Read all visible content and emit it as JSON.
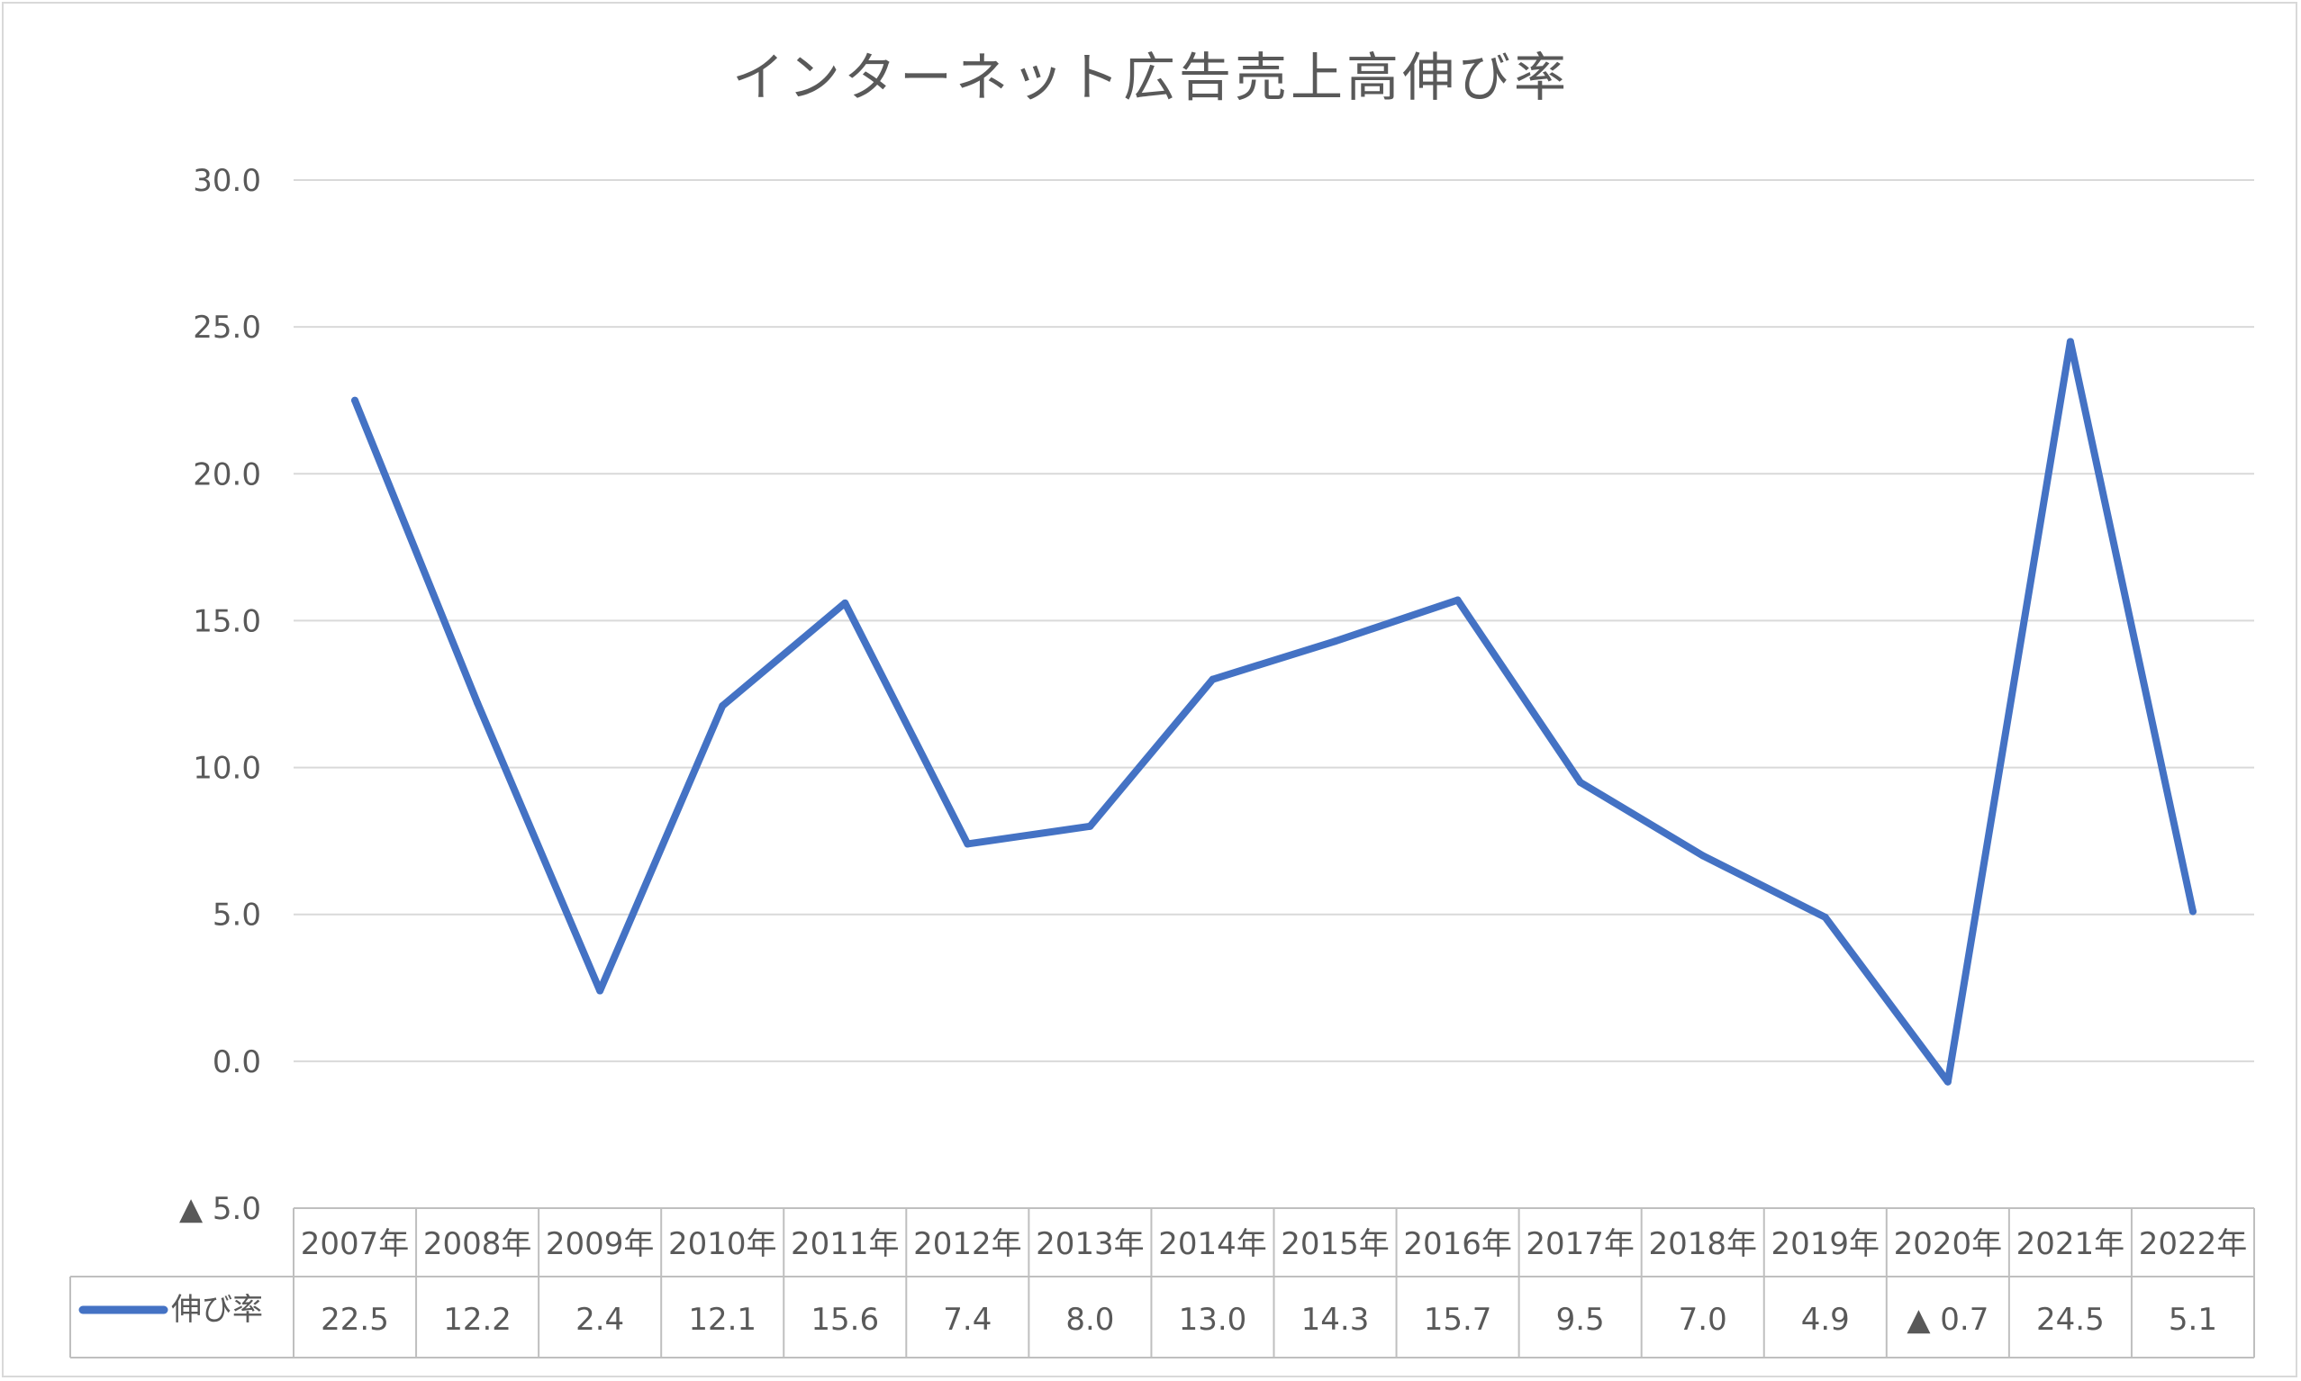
{
  "chart_data": {
    "type": "line",
    "title": "インターネット広告売上高伸び率",
    "xlabel": "",
    "ylabel": "",
    "ylim": [
      -5,
      30
    ],
    "y_ticks": [
      30,
      25,
      20,
      15,
      10,
      5,
      0,
      -5
    ],
    "y_tick_labels": [
      "30.0",
      "25.0",
      "20.0",
      "15.0",
      "10.0",
      "5.0",
      "0.0",
      "▲ 5.0"
    ],
    "grid": true,
    "categories": [
      "2007年",
      "2008年",
      "2009年",
      "2010年",
      "2011年",
      "2012年",
      "2013年",
      "2014年",
      "2015年",
      "2016年",
      "2017年",
      "2018年",
      "2019年",
      "2020年",
      "2021年",
      "2022年"
    ],
    "series": [
      {
        "name": "伸び率",
        "color": "#4472c4",
        "values": [
          22.5,
          12.2,
          2.4,
          12.1,
          15.6,
          7.4,
          8.0,
          13.0,
          14.3,
          15.7,
          9.5,
          7.0,
          4.9,
          -0.7,
          24.5,
          5.1
        ],
        "value_labels": [
          "22.5",
          "12.2",
          "2.4",
          "12.1",
          "15.6",
          "7.4",
          "8.0",
          "13.0",
          "14.3",
          "15.7",
          "9.5",
          "7.0",
          "4.9",
          "▲ 0.7",
          "24.5",
          "5.1"
        ]
      }
    ],
    "legend": "data-table"
  }
}
